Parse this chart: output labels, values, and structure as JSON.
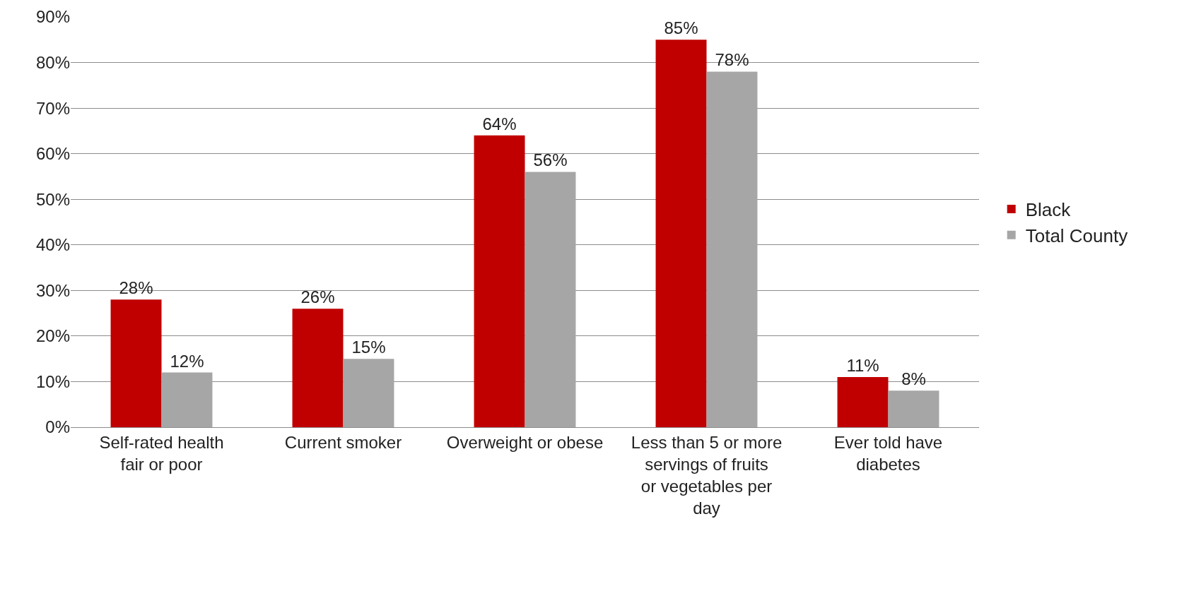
{
  "chart_data": {
    "type": "bar",
    "categories": [
      "Self-rated health fair or poor",
      "Current smoker",
      "Overweight or obese",
      "Less than 5 or more servings of fruits or vegetables per day",
      "Ever told have diabetes"
    ],
    "series": [
      {
        "name": "Black",
        "color": "#c00000",
        "values": [
          28,
          26,
          64,
          85,
          11
        ],
        "value_labels": [
          "28%",
          "26%",
          "64%",
          "85%",
          "11%"
        ]
      },
      {
        "name": "Total County",
        "color": "#a6a6a6",
        "values": [
          12,
          15,
          56,
          78,
          8
        ],
        "value_labels": [
          "12%",
          "15%",
          "56%",
          "78%",
          "8%"
        ]
      }
    ],
    "ylim": [
      0,
      90
    ],
    "yticks": [
      {
        "value": 0,
        "label": "0%"
      },
      {
        "value": 10,
        "label": "10%"
      },
      {
        "value": 20,
        "label": "20%"
      },
      {
        "value": 30,
        "label": "30%"
      },
      {
        "value": 40,
        "label": "40%"
      },
      {
        "value": 50,
        "label": "50%"
      },
      {
        "value": 60,
        "label": "60%"
      },
      {
        "value": 70,
        "label": "70%"
      },
      {
        "value": 80,
        "label": "80%"
      },
      {
        "value": 90,
        "label": "90%"
      }
    ],
    "grid": "y",
    "legend": "right"
  }
}
